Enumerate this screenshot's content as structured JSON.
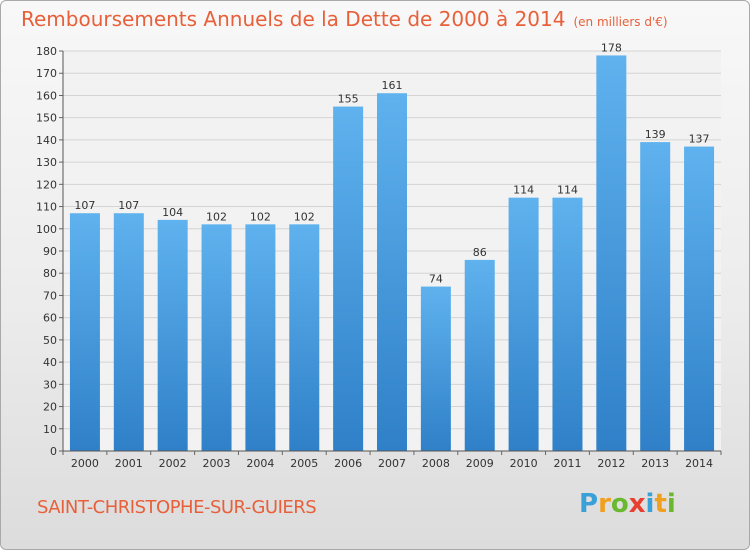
{
  "chart_data": {
    "type": "bar",
    "title": "Remboursements Annuels de la Dette de 2000 à 2014",
    "subtitle": "(en milliers d'€)",
    "categories": [
      "2000",
      "2001",
      "2002",
      "2003",
      "2004",
      "2005",
      "2006",
      "2007",
      "2008",
      "2009",
      "2010",
      "2011",
      "2012",
      "2013",
      "2014"
    ],
    "values": [
      107,
      107,
      104,
      102,
      102,
      102,
      155,
      161,
      74,
      86,
      114,
      114,
      178,
      139,
      137
    ],
    "ylim": [
      0,
      180
    ],
    "yticks": [
      0,
      10,
      20,
      30,
      40,
      50,
      60,
      70,
      80,
      90,
      100,
      110,
      120,
      130,
      140,
      150,
      160,
      170,
      180
    ],
    "grid": true,
    "bar_color": "#4a9fe0"
  },
  "footer": {
    "commune": "SAINT-CHRISTOPHE-SUR-GUIERS",
    "logo": "Proxiti",
    "logo_colors": [
      "#3aa0d8",
      "#f0a020",
      "#6ab82e",
      "#e84030",
      "#3aa0d8",
      "#f0a020",
      "#6ab82e"
    ]
  }
}
